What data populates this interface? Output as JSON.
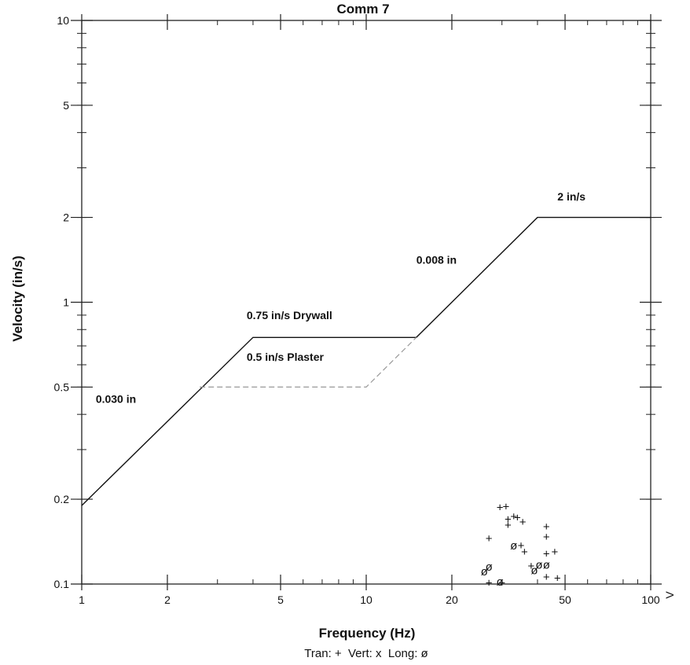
{
  "chart_data": {
    "type": "scatter",
    "title": "Comm 7",
    "xlabel": "Frequency (Hz)",
    "ylabel": "Velocity (in/s)",
    "x_scale": "log",
    "y_scale": "log",
    "xlim": [
      1,
      100
    ],
    "ylim": [
      0.1,
      10
    ],
    "x_tick_labels": [
      "1",
      "2",
      "5",
      "10",
      "20",
      "50",
      "100"
    ],
    "y_tick_labels": [
      "0.1",
      "0.2",
      "0.5",
      "1",
      "2",
      "5",
      "10"
    ],
    "right_axis_label": "V",
    "legend": "Tran: +  Vert: x  Long: ø",
    "limit_lines": [
      {
        "name": "0.75 in/s Drywall",
        "style": "solid",
        "points": [
          [
            1,
            0.19
          ],
          [
            4,
            0.75
          ],
          [
            15,
            0.75
          ],
          [
            40,
            2
          ],
          [
            100,
            2
          ]
        ]
      },
      {
        "name": "0.5 in/s Plaster",
        "style": "dashed",
        "points": [
          [
            2.6,
            0.5
          ],
          [
            10,
            0.5
          ],
          [
            15,
            0.75
          ]
        ]
      }
    ],
    "annotations": [
      "0.030 in",
      "0.75 in/s Drywall",
      "0.5 in/s Plaster",
      "0.008 in",
      "2 in/s"
    ],
    "series": [
      {
        "name": "Tran",
        "marker": "+",
        "points": [
          [
            27,
            0.145
          ],
          [
            29.5,
            0.187
          ],
          [
            31,
            0.188
          ],
          [
            31.5,
            0.162
          ],
          [
            31.5,
            0.17
          ],
          [
            33,
            0.174
          ],
          [
            34,
            0.172
          ],
          [
            35.5,
            0.166
          ],
          [
            35,
            0.137
          ],
          [
            36,
            0.13
          ],
          [
            38,
            0.116
          ],
          [
            43,
            0.16
          ],
          [
            43,
            0.147
          ],
          [
            43,
            0.128
          ],
          [
            46,
            0.13
          ],
          [
            43,
            0.106
          ],
          [
            47,
            0.105
          ],
          [
            27,
            0.101
          ],
          [
            30,
            0.101
          ]
        ]
      },
      {
        "name": "Long",
        "marker": "ø",
        "points": [
          [
            26,
            0.111
          ],
          [
            27,
            0.115
          ],
          [
            29.5,
            0.102
          ],
          [
            33,
            0.137
          ],
          [
            39,
            0.112
          ],
          [
            40.5,
            0.117
          ],
          [
            43,
            0.117
          ]
        ]
      }
    ]
  }
}
